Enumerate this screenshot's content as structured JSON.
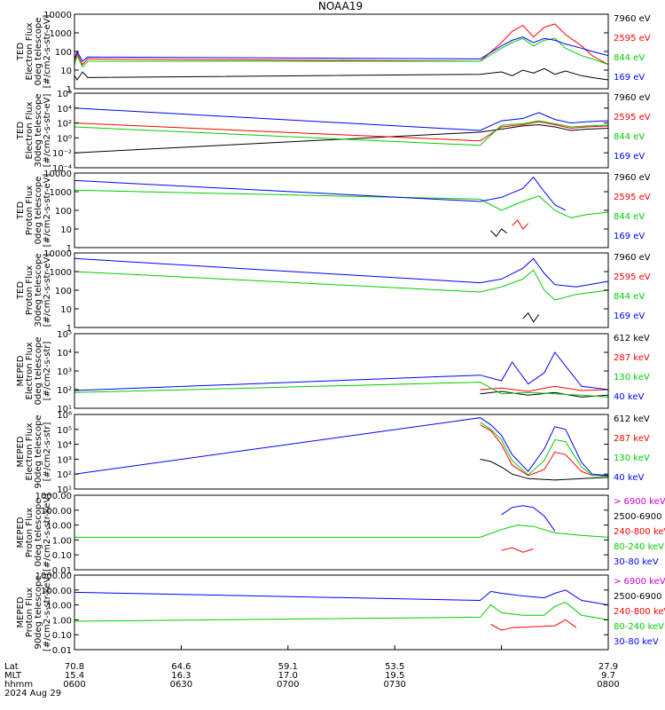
{
  "title": "NOAA19",
  "chart_data": [
    {
      "type": "line",
      "ylabel_lines": [
        "TED",
        "Electron Flux",
        "0deg telescope",
        "[#/cm2-s-str-eV]"
      ],
      "yscale": "log",
      "ylim": [
        1,
        10000
      ],
      "ytick_labels": [
        "1",
        "10",
        "100",
        "1000",
        "10000"
      ],
      "series": [
        {
          "name": "7960 eV",
          "color": "#000000",
          "x": [
            0,
            0.005,
            0.015,
            0.025,
            0.76,
            0.8,
            0.82,
            0.84,
            0.86,
            0.88,
            0.9,
            0.92,
            0.95,
            0.97,
            1.0
          ],
          "y": [
            5,
            3,
            8,
            4,
            6,
            8,
            5,
            10,
            7,
            12,
            6,
            9,
            5,
            4,
            3
          ]
        },
        {
          "name": "2595 eV",
          "color": "#ff0000",
          "x": [
            0,
            0.005,
            0.015,
            0.025,
            0.76,
            0.8,
            0.82,
            0.84,
            0.86,
            0.88,
            0.9,
            0.92,
            0.95,
            0.97,
            1.0
          ],
          "y": [
            30,
            80,
            20,
            40,
            30,
            300,
            1200,
            2500,
            600,
            2000,
            3000,
            800,
            200,
            60,
            20
          ]
        },
        {
          "name": "844 eV",
          "color": "#00cc00",
          "x": [
            0,
            0.005,
            0.015,
            0.025,
            0.76,
            0.8,
            0.82,
            0.84,
            0.86,
            0.88,
            0.9,
            0.92,
            0.95,
            0.97,
            1.0
          ],
          "y": [
            20,
            60,
            15,
            30,
            30,
            150,
            300,
            500,
            200,
            400,
            500,
            150,
            60,
            40,
            20
          ]
        },
        {
          "name": "169 eV",
          "color": "#0000ff",
          "x": [
            0,
            0.005,
            0.015,
            0.025,
            0.76,
            0.8,
            0.82,
            0.84,
            0.86,
            0.88,
            0.9,
            0.92,
            0.95,
            0.97,
            1.0
          ],
          "y": [
            40,
            100,
            30,
            50,
            40,
            200,
            400,
            600,
            300,
            500,
            400,
            250,
            150,
            100,
            60
          ]
        }
      ]
    },
    {
      "type": "line",
      "ylabel_lines": [
        "TED",
        "Electron Flux",
        "30deg telescope",
        "[#/cm2-s-str-eV]"
      ],
      "yscale": "log",
      "ylim": [
        0.0001,
        1000000
      ],
      "ytick_labels": [
        "10⁻⁴",
        "10⁻²",
        "10⁰",
        "10²",
        "10⁴",
        "10⁶"
      ],
      "series": [
        {
          "name": "7960 eV",
          "color": "#000000",
          "x": [
            0,
            0.76,
            0.8,
            0.84,
            0.87,
            0.9,
            0.93,
            0.96,
            1.0
          ],
          "y": [
            0.01,
            6,
            15,
            40,
            60,
            30,
            10,
            15,
            20
          ]
        },
        {
          "name": "2595 eV",
          "color": "#ff0000",
          "x": [
            0,
            0.76,
            0.8,
            0.84,
            0.87,
            0.9,
            0.93,
            0.96,
            1.0
          ],
          "y": [
            100,
            0.4,
            30,
            60,
            150,
            60,
            20,
            30,
            40
          ]
        },
        {
          "name": "844 eV",
          "color": "#00cc00",
          "x": [
            0,
            0.76,
            0.8,
            0.84,
            0.87,
            0.9,
            0.93,
            0.96,
            1.0
          ],
          "y": [
            30,
            0.1,
            50,
            80,
            200,
            80,
            30,
            40,
            50
          ]
        },
        {
          "name": "169 eV",
          "color": "#0000ff",
          "x": [
            0,
            0.76,
            0.8,
            0.84,
            0.87,
            0.9,
            0.93,
            0.96,
            1.0
          ],
          "y": [
            10000,
            10,
            200,
            400,
            2500,
            300,
            100,
            150,
            200
          ]
        }
      ]
    },
    {
      "type": "line",
      "ylabel_lines": [
        "TED",
        "Proton Flux",
        "0deg telescope",
        "[#/cm2-s-str-eV]"
      ],
      "yscale": "log",
      "ylim": [
        1,
        10000
      ],
      "ytick_labels": [
        "1",
        "10",
        "100",
        "1000",
        "10000"
      ],
      "series": [
        {
          "name": "7960 eV",
          "color": "#000000",
          "x": [
            0.78,
            0.79,
            0.8,
            0.81
          ],
          "y": [
            8,
            4,
            10,
            6
          ]
        },
        {
          "name": "2595 eV",
          "color": "#ff0000",
          "x": [
            0.82,
            0.83,
            0.84,
            0.85
          ],
          "y": [
            15,
            30,
            10,
            20
          ]
        },
        {
          "name": "844 eV",
          "color": "#00cc00",
          "x": [
            0,
            0.76,
            0.8,
            0.84,
            0.87,
            0.9,
            0.93,
            0.96,
            1.0
          ],
          "y": [
            1200,
            400,
            100,
            300,
            600,
            100,
            40,
            60,
            80
          ]
        },
        {
          "name": "169 eV",
          "color": "#0000ff",
          "x": [
            0,
            0.76,
            0.8,
            0.84,
            0.86,
            0.88,
            0.9,
            0.92
          ],
          "y": [
            4000,
            300,
            500,
            1500,
            6000,
            1000,
            200,
            100
          ]
        }
      ]
    },
    {
      "type": "line",
      "ylabel_lines": [
        "TED",
        "Proton Flux",
        "30deg telescope",
        "[#/cm2-s-str-eV]"
      ],
      "yscale": "log",
      "ylim": [
        1,
        10000
      ],
      "ytick_labels": [
        "1",
        "10",
        "100",
        "1000",
        "10000"
      ],
      "series": [
        {
          "name": "7960 eV",
          "color": "#000000",
          "x": [
            0.84,
            0.85,
            0.86,
            0.87
          ],
          "y": [
            3,
            6,
            2,
            5
          ]
        },
        {
          "name": "2595 eV",
          "color": "#ff0000",
          "x": [],
          "y": []
        },
        {
          "name": "844 eV",
          "color": "#00cc00",
          "x": [
            0,
            0.76,
            0.8,
            0.84,
            0.86,
            0.88,
            0.9,
            0.94,
            1.0
          ],
          "y": [
            1000,
            80,
            150,
            400,
            1200,
            100,
            30,
            60,
            100
          ]
        },
        {
          "name": "169 eV",
          "color": "#0000ff",
          "x": [
            0,
            0.76,
            0.8,
            0.84,
            0.86,
            0.88,
            0.9,
            0.94,
            1.0
          ],
          "y": [
            5000,
            250,
            400,
            1500,
            5000,
            800,
            200,
            150,
            300
          ]
        }
      ]
    },
    {
      "type": "line",
      "ylabel_lines": [
        "MEPED",
        "Electron Flux",
        "0deg telescope",
        "[#/cm2-s-str]"
      ],
      "yscale": "log",
      "ylim": [
        10,
        100000
      ],
      "ytick_labels": [
        "10¹",
        "10²",
        "10³",
        "10⁴",
        "10⁵"
      ],
      "series": [
        {
          "name": "612 keV",
          "color": "#000000",
          "x": [
            0.76,
            0.8,
            0.85,
            0.9,
            0.95,
            1.0
          ],
          "y": [
            60,
            80,
            50,
            70,
            40,
            50
          ]
        },
        {
          "name": "287 keV",
          "color": "#ff0000",
          "x": [
            0.76,
            0.8,
            0.85,
            0.9,
            0.95,
            1.0
          ],
          "y": [
            100,
            120,
            80,
            150,
            90,
            100
          ]
        },
        {
          "name": "130 keV",
          "color": "#00cc00",
          "x": [
            0,
            0.76,
            0.8,
            0.85,
            0.9,
            0.95,
            1.0
          ],
          "y": [
            70,
            250,
            60,
            70,
            60,
            50,
            40
          ]
        },
        {
          "name": "40 keV",
          "color": "#0000ff",
          "x": [
            0,
            0.76,
            0.8,
            0.82,
            0.85,
            0.88,
            0.9,
            0.95,
            1.0
          ],
          "y": [
            90,
            600,
            300,
            3000,
            200,
            800,
            10000,
            150,
            100
          ]
        }
      ]
    },
    {
      "type": "line",
      "ylabel_lines": [
        "MEPED",
        "Electron Flux",
        "90deg telescope",
        "[#/cm2-s-str]"
      ],
      "yscale": "log",
      "ylim": [
        10,
        1000000
      ],
      "ytick_labels": [
        "10¹",
        "10²",
        "10³",
        "10⁴",
        "10⁵",
        "10⁶"
      ],
      "series": [
        {
          "name": "612 keV",
          "color": "#000000",
          "x": [
            0.76,
            0.78,
            0.8,
            0.82,
            0.85,
            0.9,
            0.95,
            1.0
          ],
          "y": [
            1000,
            700,
            300,
            100,
            50,
            40,
            50,
            60
          ]
        },
        {
          "name": "287 keV",
          "color": "#ff0000",
          "x": [
            0.76,
            0.78,
            0.8,
            0.82,
            0.85,
            0.88,
            0.9,
            0.92,
            0.95,
            0.97,
            1.0
          ],
          "y": [
            200000,
            80000,
            10000,
            400,
            80,
            200,
            3000,
            2000,
            150,
            80,
            80
          ]
        },
        {
          "name": "130 keV",
          "color": "#00cc00",
          "x": [
            0.76,
            0.78,
            0.8,
            0.82,
            0.85,
            0.88,
            0.9,
            0.92,
            0.95,
            0.97,
            1.0
          ],
          "y": [
            300000,
            100000,
            20000,
            800,
            90,
            800,
            20000,
            15000,
            300,
            80,
            70
          ]
        },
        {
          "name": "40 keV",
          "color": "#0000ff",
          "x": [
            0,
            0.76,
            0.78,
            0.8,
            0.82,
            0.85,
            0.88,
            0.9,
            0.92,
            0.95,
            0.97,
            1.0
          ],
          "y": [
            100,
            600000,
            200000,
            40000,
            2000,
            150,
            5000,
            150000,
            100000,
            600,
            100,
            80
          ]
        }
      ]
    },
    {
      "type": "line",
      "ylabel_lines": [
        "MEPED",
        "Proton Flux",
        "0deg telescope",
        "[#/cm2-s-str-keV]"
      ],
      "yscale": "log",
      "ylim": [
        0.01,
        1000
      ],
      "ytick_labels": [
        "0.01",
        "0.10",
        "1.00",
        "10.00",
        "100.00",
        "1000.00"
      ],
      "series": [
        {
          "name": "> 6900 keV",
          "color": "#cc00cc",
          "x": [],
          "y": []
        },
        {
          "name": "2500-6900",
          "color": "#000000",
          "x": [],
          "y": []
        },
        {
          "name": "240-800 keV",
          "color": "#ff0000",
          "x": [
            0.8,
            0.82,
            0.84,
            0.86
          ],
          "y": [
            0.2,
            0.3,
            0.15,
            0.25
          ]
        },
        {
          "name": "80-240 keV",
          "color": "#00cc00",
          "x": [
            0,
            0.76,
            0.8,
            0.83,
            0.86,
            0.9,
            0.95,
            1.0
          ],
          "y": [
            1.5,
            1.5,
            5,
            10,
            8,
            3,
            2,
            1.5
          ]
        },
        {
          "name": "30-80 keV",
          "color": "#0000ff",
          "x": [
            0.8,
            0.82,
            0.84,
            0.86,
            0.88,
            0.9
          ],
          "y": [
            50,
            150,
            200,
            150,
            40,
            4
          ]
        }
      ]
    },
    {
      "type": "line",
      "ylabel_lines": [
        "MEPED",
        "Proton Flux",
        "90deg telescope",
        "[#/cm2-s-str-keV]"
      ],
      "yscale": "log",
      "ylim": [
        0.01,
        1000
      ],
      "ytick_labels": [
        "0.01",
        "0.10",
        "1.00",
        "10.00",
        "100.00",
        "1000.00"
      ],
      "series": [
        {
          "name": "> 6900 keV",
          "color": "#cc00cc",
          "x": [],
          "y": []
        },
        {
          "name": "2500-6900",
          "color": "#000000",
          "x": [],
          "y": []
        },
        {
          "name": "240-800 keV",
          "color": "#ff0000",
          "x": [
            0.78,
            0.8,
            0.82,
            0.9,
            0.92,
            0.94
          ],
          "y": [
            0.5,
            0.2,
            0.3,
            0.4,
            1.0,
            0.3
          ]
        },
        {
          "name": "80-240 keV",
          "color": "#00cc00",
          "x": [
            0,
            0.76,
            0.78,
            0.8,
            0.84,
            0.88,
            0.9,
            0.92,
            0.95,
            1.0
          ],
          "y": [
            0.8,
            1.5,
            10,
            3,
            2,
            2,
            8,
            15,
            2,
            1
          ]
        },
        {
          "name": "30-80 keV",
          "color": "#0000ff",
          "x": [
            0,
            0.76,
            0.78,
            0.8,
            0.84,
            0.88,
            0.9,
            0.92,
            0.95,
            1.0
          ],
          "y": [
            70,
            20,
            80,
            60,
            40,
            30,
            60,
            100,
            20,
            10
          ]
        }
      ]
    }
  ],
  "x_axis": {
    "xlim": [
      0,
      1
    ],
    "row_labels": [
      "Lat",
      "MLT",
      "hhmm"
    ],
    "date_label": "2024 Aug 29",
    "ticks": [
      {
        "x": 0,
        "lat": "70.8",
        "mlt": "15.4",
        "time": "0600"
      },
      {
        "x": 0.2,
        "lat": "64.6",
        "mlt": "16.3",
        "time": "0630"
      },
      {
        "x": 0.4,
        "lat": "59.1",
        "mlt": "17.0",
        "time": "0700"
      },
      {
        "x": 0.6,
        "lat": "53.5",
        "mlt": "19.5",
        "time": "0730"
      },
      {
        "x": 0.8,
        "lat": "",
        "mlt": "",
        "time": ""
      },
      {
        "x": 1,
        "lat": "27.9",
        "mlt": "9.7",
        "time": "0800"
      }
    ]
  }
}
